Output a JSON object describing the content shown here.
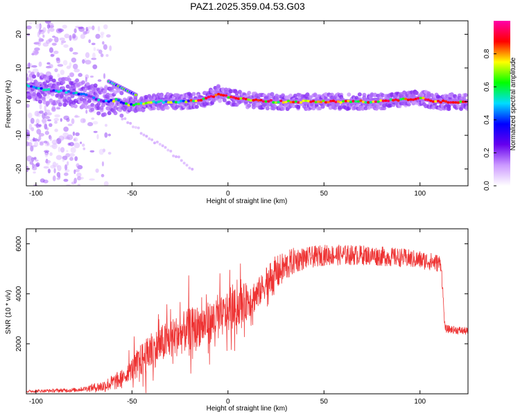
{
  "title": "PAZ1.2025.359.04.53.G03",
  "chart_data": [
    {
      "type": "heatmap",
      "xlabel": "Height of straight line (km)",
      "ylabel": "Frequency (Hz)",
      "xlim": [
        -105,
        125
      ],
      "ylim": [
        -25,
        24
      ],
      "xticks": [
        -100,
        -50,
        0,
        50,
        100
      ],
      "yticks": [
        -20,
        -10,
        0,
        10,
        20
      ],
      "colorbar": {
        "label": "Normalized spectral amplitude",
        "range": [
          0,
          1
        ],
        "ticks": [
          0.0,
          0.2,
          0.4,
          0.6,
          0.8
        ],
        "colors": [
          "#ffffff",
          "#cc99ff",
          "#6600ee",
          "#0000ff",
          "#00ddff",
          "#00ff00",
          "#ffff00",
          "#ff0000",
          "#ff00aa"
        ]
      },
      "ridge": {
        "description": "main tone frequency vs height",
        "x": [
          -105,
          -95,
          -85,
          -75,
          -65,
          -58,
          -52,
          -45,
          -35,
          -25,
          -15,
          -8,
          -5,
          0,
          10,
          25,
          50,
          75,
          90,
          100,
          110,
          125
        ],
        "y": [
          5,
          3.5,
          3,
          2,
          0,
          0.5,
          -1,
          -0.5,
          0,
          0,
          0.5,
          1.5,
          2.5,
          1.5,
          0.5,
          0,
          0,
          0,
          0.5,
          1,
          0,
          0
        ]
      },
      "branch": {
        "description": "secondary tone at high frequency near -60 km",
        "x": [
          -62,
          -55,
          -48
        ],
        "y": [
          6,
          4,
          2
        ]
      },
      "faint_trace": {
        "description": "faint descending trace",
        "x": [
          -55,
          -45,
          -35,
          -25,
          -18
        ],
        "y": [
          -5,
          -9,
          -13,
          -17,
          -20
        ]
      }
    },
    {
      "type": "line",
      "xlabel": "Height of straight line (km)",
      "ylabel": "SNR (10 * v/v)",
      "xlim": [
        -105,
        125
      ],
      "ylim": [
        0,
        6600
      ],
      "xticks": [
        -100,
        -50,
        0,
        50,
        100
      ],
      "yticks": [
        2000,
        4000,
        6000
      ],
      "color": "#ee3333",
      "trend": {
        "x": [
          -105,
          -80,
          -65,
          -55,
          -45,
          -35,
          -20,
          -5,
          5,
          15,
          25,
          35,
          50,
          70,
          90,
          105,
          111,
          113,
          125
        ],
        "y": [
          100,
          150,
          300,
          600,
          1300,
          1900,
          2500,
          2900,
          3400,
          3900,
          4800,
          5350,
          5550,
          5550,
          5450,
          5300,
          5200,
          2600,
          2500
        ]
      },
      "spike_amplitude": {
        "x": [
          -105,
          -75,
          -55,
          -45,
          -30,
          -20,
          -5,
          10,
          25,
          40,
          110,
          113,
          125
        ],
        "y": [
          60,
          120,
          500,
          1500,
          1800,
          1900,
          1800,
          1700,
          900,
          550,
          450,
          200,
          200
        ]
      }
    }
  ]
}
